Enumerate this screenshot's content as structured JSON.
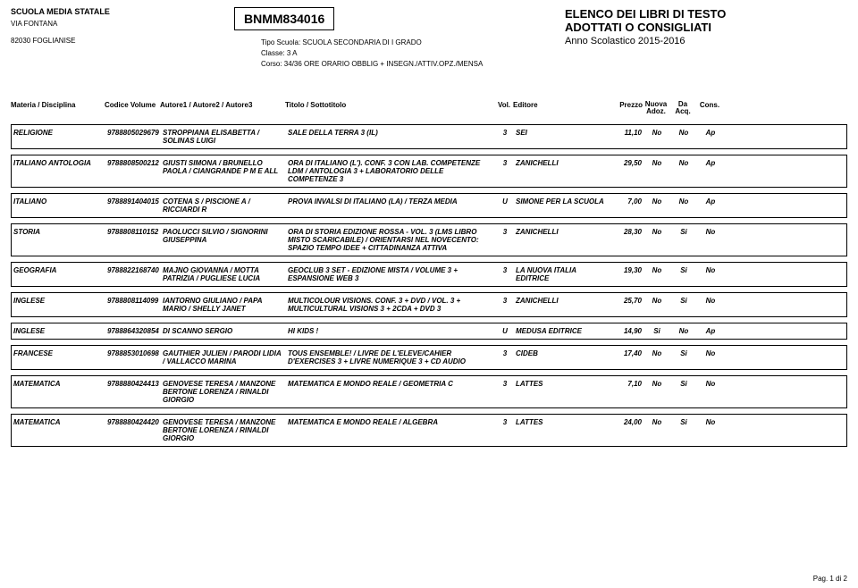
{
  "header": {
    "school_name": "SCUOLA MEDIA STATALE",
    "via": "VIA FONTANA",
    "loc": "82030  FOGLIANISE",
    "code": "BNMM834016",
    "tipo_label": "Tipo Scuola:",
    "tipo_value": "SCUOLA SECONDARIA DI I GRADO",
    "classe_label": "Classe:",
    "classe_value": "3 A",
    "corso_label": "Corso:",
    "corso_value": "34/36 ORE ORARIO OBBLIG + INSEGN./ATTIV.OPZ./MENSA",
    "elenco1": "ELENCO DEI LIBRI DI TESTO",
    "elenco2": "ADOTTATI O CONSIGLIATI",
    "anno": "Anno Scolastico 2015-2016"
  },
  "columns": {
    "materia": "Materia / Disciplina",
    "codice": "Codice Volume",
    "autore": "Autore1 / Autore2 / Autore3",
    "titolo": "Titolo / Sottotitolo",
    "vol": "Vol.",
    "editore": "Editore",
    "prezzo": "Prezzo",
    "nuova": "Nuova\nAdoz.",
    "daacq": "Da\nAcq.",
    "cons": "Cons."
  },
  "rows": [
    {
      "mat": "RELIGIONE",
      "cod": "9788805029679",
      "aut": "STROPPIANA ELISABETTA / SOLINAS LUIGI",
      "tit": "SALE DELLA TERRA 3 (IL)",
      "vol": "3",
      "edi": "SEI",
      "prz": "11,10",
      "nuo": "No",
      "daq": "No",
      "con": "Ap"
    },
    {
      "mat": "ITALIANO ANTOLOGIA",
      "cod": "9788808500212",
      "aut": "GIUSTI SIMONA / BRUNELLO PAOLA / CIANGRANDE P M  E ALL",
      "tit": "ORA DI ITALIANO (L'). CONF. 3 CON LAB. COMPETENZE LDM  / ANTOLOGIA 3 + LABORATORIO DELLE COMPETENZE 3",
      "vol": "3",
      "edi": "ZANICHELLI",
      "prz": "29,50",
      "nuo": "No",
      "daq": "No",
      "con": "Ap"
    },
    {
      "mat": "ITALIANO",
      "cod": "9788891404015",
      "aut": "COTENA S / PISCIONE A / RICCIARDI R",
      "tit": "PROVA INVALSI DI ITALIANO (LA) / TERZA MEDIA",
      "vol": "U",
      "edi": "SIMONE PER LA SCUOLA",
      "prz": "7,00",
      "nuo": "No",
      "daq": "No",
      "con": "Ap"
    },
    {
      "mat": "STORIA",
      "cod": "9788808110152",
      "aut": "PAOLUCCI SILVIO / SIGNORINI GIUSEPPINA",
      "tit": "ORA DI STORIA EDIZIONE ROSSA - VOL. 3 (LMS LIBRO MISTO SCARICABILE) / ORIENTARSI NEL NOVECENTO: SPAZIO TEMPO IDEE + CITTADINANZA ATTIVA",
      "vol": "3",
      "edi": "ZANICHELLI",
      "prz": "28,30",
      "nuo": "No",
      "daq": "Si",
      "con": "No"
    },
    {
      "mat": "GEOGRAFIA",
      "cod": "9788822168740",
      "aut": "MAJNO GIOVANNA / MOTTA PATRIZIA / PUGLIESE LUCIA",
      "tit": "GEOCLUB 3 SET - EDIZIONE MISTA / VOLUME 3 + ESPANSIONE WEB 3",
      "vol": "3",
      "edi": "LA NUOVA ITALIA EDITRICE",
      "prz": "19,30",
      "nuo": "No",
      "daq": "Si",
      "con": "No"
    },
    {
      "mat": "INGLESE",
      "cod": "9788808114099",
      "aut": "IANTORNO GIULIANO / PAPA MARIO / SHELLY JANET",
      "tit": "MULTICOLOUR VISIONS. CONF. 3 + DVD / VOL. 3 + MULTICULTURAL VISIONS 3 + 2CDA + DVD 3",
      "vol": "3",
      "edi": "ZANICHELLI",
      "prz": "25,70",
      "nuo": "No",
      "daq": "Si",
      "con": "No"
    },
    {
      "mat": "INGLESE",
      "cod": "9788864320854",
      "aut": "DI SCANNO  SERGIO",
      "tit": "HI KIDS !",
      "vol": "U",
      "edi": "MEDUSA EDITRICE",
      "prz": "14,90",
      "nuo": "Si",
      "daq": "No",
      "con": "Ap"
    },
    {
      "mat": "FRANCESE",
      "cod": "9788853010698",
      "aut": "GAUTHIER JULIEN / PARODI LIDIA / VALLACCO MARINA",
      "tit": "TOUS ENSEMBLE! / LIVRE DE L'ELEVE/CAHIER D'EXERCISES 3 + LIVRE NUMERIQUE 3 + CD AUDIO",
      "vol": "3",
      "edi": "CIDEB",
      "prz": "17,40",
      "nuo": "No",
      "daq": "Si",
      "con": "No"
    },
    {
      "mat": "MATEMATICA",
      "cod": "9788880424413",
      "aut": "GENOVESE TERESA / MANZONE BERTONE LORENZA / RINALDI GIORGIO",
      "tit": "MATEMATICA E MONDO REALE / GEOMETRIA C",
      "vol": "3",
      "edi": "LATTES",
      "prz": "7,10",
      "nuo": "No",
      "daq": "Si",
      "con": "No"
    },
    {
      "mat": "MATEMATICA",
      "cod": "9788880424420",
      "aut": "GENOVESE TERESA / MANZONE BERTONE LORENZA / RINALDI GIORGIO",
      "tit": "MATEMATICA E MONDO REALE / ALGEBRA",
      "vol": "3",
      "edi": "LATTES",
      "prz": "24,00",
      "nuo": "No",
      "daq": "Si",
      "con": "No"
    }
  ],
  "footer": "Pag. 1 di 2"
}
